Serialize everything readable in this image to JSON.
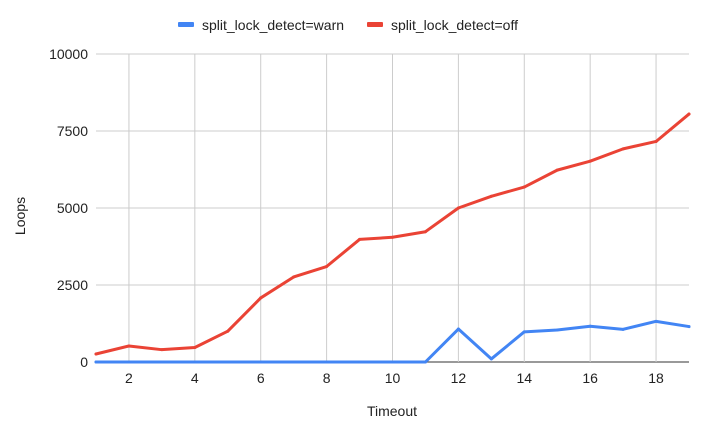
{
  "chart_data": {
    "type": "line",
    "xlabel": "Timeout",
    "ylabel": "Loops",
    "xlim": [
      1,
      19
    ],
    "ylim": [
      0,
      10000
    ],
    "x_ticks": [
      2,
      4,
      6,
      8,
      10,
      12,
      14,
      16,
      18
    ],
    "y_ticks": [
      0,
      2500,
      5000,
      7500,
      10000
    ],
    "y_tick_labels": [
      "0",
      "2500",
      "5000",
      "7500",
      "10000"
    ],
    "legend_position": "top",
    "grid": true,
    "x": [
      1,
      2,
      3,
      4,
      5,
      6,
      7,
      8,
      9,
      10,
      11,
      12,
      13,
      14,
      15,
      16,
      17,
      18,
      19
    ],
    "series": [
      {
        "name": "split_lock_detect=warn",
        "color": "#4285f4",
        "values": [
          0,
          0,
          0,
          0,
          0,
          0,
          0,
          0,
          0,
          0,
          0,
          1070,
          100,
          980,
          1040,
          1160,
          1060,
          1320,
          1150
        ]
      },
      {
        "name": "split_lock_detect=off",
        "color": "#ea4335",
        "values": [
          260,
          520,
          400,
          470,
          1000,
          2080,
          2760,
          3100,
          3980,
          4050,
          4230,
          5000,
          5380,
          5680,
          6230,
          6520,
          6920,
          7160,
          8050
        ]
      }
    ]
  }
}
